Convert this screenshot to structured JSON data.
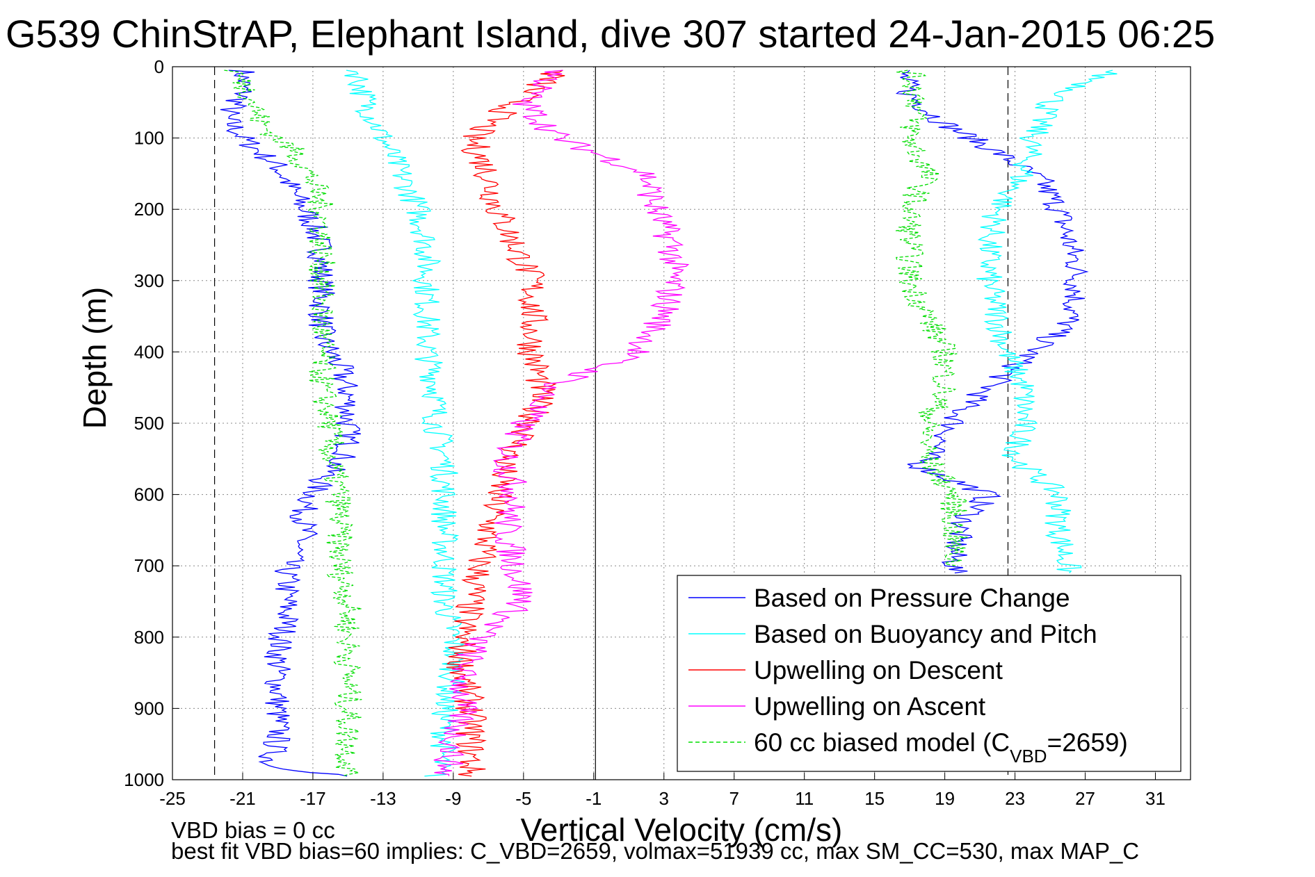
{
  "chart_data": {
    "type": "line",
    "title": "G539 ChinStrAP, Elephant Island, dive 307 started 24-Jan-2015 06:25",
    "xlabel": "Vertical Velocity (cm/s)",
    "ylabel": "Depth (m)",
    "xlim": [
      -25,
      33
    ],
    "ylim": [
      0,
      1000
    ],
    "y_reversed": true,
    "x_ticks": [
      -25,
      -21,
      -17,
      -13,
      -9,
      -5,
      -1,
      3,
      7,
      11,
      15,
      19,
      23,
      27,
      31
    ],
    "y_ticks": [
      0,
      100,
      200,
      300,
      400,
      500,
      600,
      700,
      800,
      900,
      1000
    ],
    "grid": true,
    "legend_position": "lower-right",
    "reference_lines": {
      "solid_x": -0.9,
      "dashed_x": [
        -22.6,
        22.6
      ]
    },
    "series": [
      {
        "name": "Based on Pressure Change",
        "color": "#0000ff",
        "descent_depth": [
          5,
          40,
          70,
          100,
          140,
          180,
          220,
          260,
          300,
          340,
          380,
          420,
          460,
          500,
          540,
          580,
          620,
          660,
          700,
          740,
          780,
          820,
          860,
          900,
          940,
          980,
          995
        ],
        "descent": [
          -21.0,
          -21.0,
          -22.0,
          -21.0,
          -19.0,
          -18.0,
          -17.0,
          -16.5,
          -16.5,
          -16.5,
          -16.5,
          -15.5,
          -15.0,
          -15.0,
          -15.0,
          -16.5,
          -17.5,
          -17.5,
          -18.5,
          -18.5,
          -18.5,
          -19.0,
          -19.0,
          -19.0,
          -19.0,
          -19.5,
          -15.0
        ],
        "ascent_depth": [
          5,
          40,
          80,
          120,
          160,
          200,
          240,
          280,
          320,
          360,
          400,
          440,
          480,
          520,
          560,
          600,
          640,
          680,
          710
        ],
        "ascent": [
          16.5,
          17.0,
          19.0,
          22.0,
          24.5,
          25.5,
          26.0,
          26.5,
          26.5,
          26.0,
          24.0,
          22.0,
          20.0,
          19.0,
          17.5,
          21.5,
          20.0,
          19.5,
          19.5
        ]
      },
      {
        "name": "Based on Buoyancy and Pitch",
        "color": "#00ffff",
        "descent_depth": [
          5,
          50,
          100,
          150,
          200,
          250,
          300,
          350,
          400,
          450,
          500,
          550,
          600,
          650,
          700,
          750,
          800,
          850,
          900,
          950,
          995
        ],
        "descent": [
          -14.5,
          -14.0,
          -13.0,
          -12.0,
          -11.0,
          -10.5,
          -10.5,
          -10.5,
          -10.5,
          -10.0,
          -10.0,
          -9.5,
          -9.5,
          -9.5,
          -9.5,
          -9.5,
          -9.0,
          -9.0,
          -9.5,
          -9.5,
          -10.0
        ],
        "ascent_depth": [
          5,
          50,
          100,
          150,
          200,
          250,
          300,
          350,
          400,
          450,
          500,
          550,
          600,
          650,
          700,
          710
        ],
        "ascent": [
          28.5,
          25.0,
          24.0,
          23.5,
          22.0,
          21.5,
          21.5,
          22.0,
          22.5,
          23.5,
          23.5,
          23.0,
          25.5,
          25.5,
          26.0,
          26.0
        ]
      },
      {
        "name": "Upwelling on Descent",
        "color": "#ff0000",
        "depth": [
          5,
          50,
          100,
          150,
          200,
          250,
          300,
          350,
          400,
          450,
          500,
          550,
          600,
          650,
          700,
          750,
          800,
          850,
          900,
          950,
          995
        ],
        "values": [
          -3.0,
          -5.5,
          -8.0,
          -7.0,
          -6.5,
          -5.5,
          -4.5,
          -4.5,
          -4.5,
          -4.0,
          -4.5,
          -6.0,
          -6.5,
          -7.0,
          -7.5,
          -8.0,
          -8.5,
          -8.5,
          -8.0,
          -8.0,
          -8.0
        ]
      },
      {
        "name": "Upwelling on Ascent",
        "color": "#ff00ff",
        "depth": [
          5,
          50,
          100,
          150,
          200,
          250,
          300,
          350,
          400,
          450,
          500,
          550,
          600,
          650,
          700,
          750,
          800,
          850,
          900,
          950,
          995
        ],
        "values": [
          -3.0,
          -5.0,
          -3.0,
          2.0,
          2.5,
          3.5,
          3.5,
          3.0,
          1.5,
          -3.5,
          -5.0,
          -6.0,
          -5.5,
          -6.0,
          -5.5,
          -5.0,
          -7.5,
          -8.5,
          -8.5,
          -9.0,
          -9.5
        ]
      },
      {
        "name": "60 cc biased model (C",
        "name_sub": "VBD",
        "name_tail": "=2659)",
        "color": "#00dd00",
        "dashed": true,
        "descent_depth": [
          5,
          40,
          80,
          120,
          160,
          200,
          250,
          300,
          350,
          400,
          450,
          500,
          550,
          600,
          650,
          700,
          750,
          800,
          850,
          900,
          950,
          995
        ],
        "descent": [
          -21.5,
          -20.5,
          -20.0,
          -18.0,
          -17.0,
          -16.5,
          -16.5,
          -16.5,
          -16.5,
          -16.5,
          -16.5,
          -16.0,
          -16.0,
          -15.5,
          -15.5,
          -15.5,
          -15.0,
          -15.0,
          -15.0,
          -15.0,
          -15.0,
          -15.0
        ],
        "ascent_depth": [
          5,
          50,
          100,
          150,
          200,
          250,
          300,
          350,
          400,
          450,
          500,
          550,
          600,
          650,
          700
        ],
        "ascent": [
          17.0,
          17.5,
          17.0,
          18.0,
          17.0,
          17.0,
          17.0,
          18.0,
          19.0,
          19.0,
          18.0,
          18.0,
          19.5,
          19.5,
          19.5
        ]
      }
    ]
  },
  "annotations": {
    "bias_text": "VBD bias = 0 cc",
    "fit_text": "best fit VBD bias=60 implies: C_VBD=2659, volmax=51939 cc, max SM_CC=530, max MAP_C"
  }
}
